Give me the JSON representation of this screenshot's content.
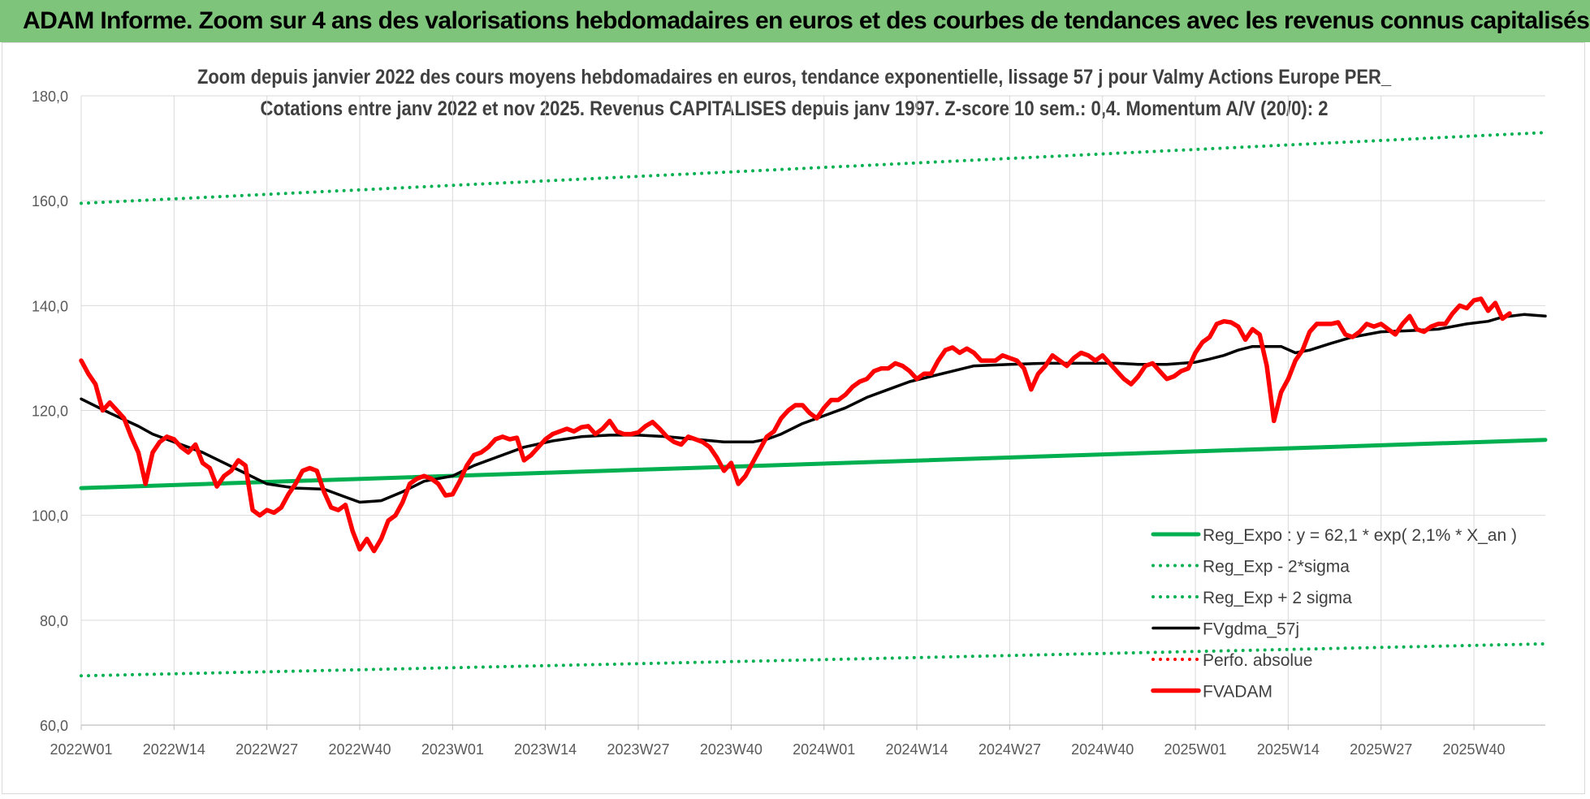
{
  "page": {
    "banner_title": "ADAM Informe. Zoom sur 4 ans des valorisations hebdomadaires en euros et des courbes de tendances avec les revenus connus capitalisés"
  },
  "chart_data": {
    "type": "line",
    "title": "Zoom depuis janvier 2022 des cours moyens hebdomadaires en euros, tendance exponentielle, lissage 57 j pour Valmy Actions Europe PER_",
    "subtitle": "Cotations entre janv 2022 et nov 2025. Revenus CAPITALISES depuis janv 1997. Z-score 10 sem.: 0,4. Momentum A/V (20/0): 2",
    "xlabel": "",
    "ylabel": "",
    "ylim": [
      60,
      180
    ],
    "yticks": [
      "60,0",
      "80,0",
      "100,0",
      "120,0",
      "140,0",
      "160,0",
      "180,0"
    ],
    "x_tick_labels": [
      "2022W01",
      "2022W14",
      "2022W27",
      "2022W40",
      "2023W01",
      "2023W14",
      "2023W27",
      "2023W40",
      "2024W01",
      "2024W14",
      "2024W27",
      "2024W40",
      "2025W01",
      "2025W14",
      "2025W27",
      "2025W40"
    ],
    "x_ticks": [
      0,
      13,
      26,
      39,
      52,
      65,
      78,
      91,
      104,
      117,
      130,
      143,
      156,
      169,
      182,
      195
    ],
    "x_range": [
      0,
      205
    ],
    "grid": true,
    "legend_position": "bottom-right",
    "series": [
      {
        "name": "Reg_Expo : y = 62,1 * exp( 2,1% *  X_an )",
        "style": "solid-thick",
        "color": "#00b050",
        "points": [
          [
            0,
            105.2
          ],
          [
            205,
            114.4
          ]
        ]
      },
      {
        "name": "Reg_Exp - 2*sigma",
        "style": "dotted",
        "color": "#00b050",
        "points": [
          [
            0,
            69.4
          ],
          [
            205,
            75.5
          ]
        ]
      },
      {
        "name": "Reg_Exp + 2 sigma",
        "style": "dotted",
        "color": "#00b050",
        "points": [
          [
            0,
            159.5
          ],
          [
            205,
            173.0
          ]
        ]
      },
      {
        "name": "FVgdma_57j",
        "style": "solid",
        "color": "#000000",
        "points": [
          [
            0,
            122.2
          ],
          [
            4,
            119.5
          ],
          [
            8,
            117.0
          ],
          [
            10,
            115.5
          ],
          [
            13,
            114.0
          ],
          [
            17,
            112.0
          ],
          [
            20,
            110.0
          ],
          [
            23,
            108.0
          ],
          [
            26,
            106.0
          ],
          [
            30,
            105.2
          ],
          [
            34,
            105.0
          ],
          [
            37,
            103.5
          ],
          [
            39,
            102.5
          ],
          [
            42,
            102.8
          ],
          [
            45,
            104.5
          ],
          [
            48,
            106.5
          ],
          [
            52,
            107.5
          ],
          [
            55,
            109.5
          ],
          [
            58,
            111.0
          ],
          [
            62,
            113.0
          ],
          [
            66,
            114.2
          ],
          [
            70,
            115.0
          ],
          [
            74,
            115.3
          ],
          [
            78,
            115.3
          ],
          [
            82,
            115.0
          ],
          [
            86,
            114.5
          ],
          [
            90,
            114.0
          ],
          [
            94,
            114.0
          ],
          [
            96,
            114.5
          ],
          [
            98,
            115.5
          ],
          [
            101,
            117.5
          ],
          [
            104,
            119.0
          ],
          [
            107,
            120.5
          ],
          [
            110,
            122.5
          ],
          [
            113,
            124.0
          ],
          [
            116,
            125.5
          ],
          [
            119,
            126.5
          ],
          [
            122,
            127.5
          ],
          [
            125,
            128.5
          ],
          [
            130,
            128.8
          ],
          [
            135,
            129.0
          ],
          [
            140,
            129.0
          ],
          [
            145,
            129.0
          ],
          [
            148,
            128.8
          ],
          [
            152,
            128.8
          ],
          [
            156,
            129.2
          ],
          [
            158,
            129.8
          ],
          [
            160,
            130.5
          ],
          [
            162,
            131.5
          ],
          [
            164,
            132.2
          ],
          [
            168,
            132.2
          ],
          [
            170,
            131.0
          ],
          [
            172,
            131.5
          ],
          [
            175,
            132.8
          ],
          [
            178,
            134.0
          ],
          [
            182,
            135.0
          ],
          [
            186,
            135.2
          ],
          [
            190,
            135.5
          ],
          [
            194,
            136.5
          ],
          [
            197,
            137.0
          ],
          [
            199,
            137.8
          ],
          [
            202,
            138.3
          ],
          [
            205,
            138.0
          ]
        ]
      },
      {
        "name": "Perfo. absolue",
        "style": "dotted",
        "color": "#ff0000",
        "points": []
      },
      {
        "name": "FVADAM",
        "style": "solid-thick",
        "color": "#ff0000",
        "points": [
          [
            0,
            129.5
          ],
          [
            1,
            127.0
          ],
          [
            2,
            125.0
          ],
          [
            3,
            120.0
          ],
          [
            4,
            121.5
          ],
          [
            5,
            120.0
          ],
          [
            6,
            118.5
          ],
          [
            7,
            115.0
          ],
          [
            8,
            112.0
          ],
          [
            9,
            106.0
          ],
          [
            10,
            112.0
          ],
          [
            11,
            114.0
          ],
          [
            12,
            115.0
          ],
          [
            13,
            114.5
          ],
          [
            14,
            113.0
          ],
          [
            15,
            112.0
          ],
          [
            16,
            113.5
          ],
          [
            17,
            110.0
          ],
          [
            18,
            109.0
          ],
          [
            19,
            105.5
          ],
          [
            20,
            107.5
          ],
          [
            21,
            108.5
          ],
          [
            22,
            110.5
          ],
          [
            23,
            109.5
          ],
          [
            24,
            101.0
          ],
          [
            25,
            100.0
          ],
          [
            26,
            101.0
          ],
          [
            27,
            100.5
          ],
          [
            28,
            101.5
          ],
          [
            29,
            104.0
          ],
          [
            30,
            106.0
          ],
          [
            31,
            108.5
          ],
          [
            32,
            109.0
          ],
          [
            33,
            108.5
          ],
          [
            34,
            104.5
          ],
          [
            35,
            101.5
          ],
          [
            36,
            101.0
          ],
          [
            37,
            102.0
          ],
          [
            38,
            97.0
          ],
          [
            39,
            93.5
          ],
          [
            40,
            95.5
          ],
          [
            41,
            93.2
          ],
          [
            42,
            95.5
          ],
          [
            43,
            99.0
          ],
          [
            44,
            100.0
          ],
          [
            45,
            102.5
          ],
          [
            46,
            106.0
          ],
          [
            47,
            107.0
          ],
          [
            48,
            107.5
          ],
          [
            49,
            107.0
          ],
          [
            50,
            106.0
          ],
          [
            51,
            103.8
          ],
          [
            52,
            104.0
          ],
          [
            53,
            106.5
          ],
          [
            54,
            109.5
          ],
          [
            55,
            111.5
          ],
          [
            56,
            112.0
          ],
          [
            57,
            113.0
          ],
          [
            58,
            114.5
          ],
          [
            59,
            115.0
          ],
          [
            60,
            114.5
          ],
          [
            61,
            114.8
          ],
          [
            62,
            110.5
          ],
          [
            63,
            111.5
          ],
          [
            64,
            113.0
          ],
          [
            65,
            114.5
          ],
          [
            66,
            115.5
          ],
          [
            67,
            116.0
          ],
          [
            68,
            116.5
          ],
          [
            69,
            116.0
          ],
          [
            70,
            116.8
          ],
          [
            71,
            117.0
          ],
          [
            72,
            115.5
          ],
          [
            73,
            116.5
          ],
          [
            74,
            118.0
          ],
          [
            75,
            116.0
          ],
          [
            76,
            115.5
          ],
          [
            77,
            115.5
          ],
          [
            78,
            115.8
          ],
          [
            79,
            117.0
          ],
          [
            80,
            117.8
          ],
          [
            81,
            116.5
          ],
          [
            82,
            115.0
          ],
          [
            83,
            114.0
          ],
          [
            84,
            113.5
          ],
          [
            85,
            115.0
          ],
          [
            86,
            114.5
          ],
          [
            87,
            114.0
          ],
          [
            88,
            113.0
          ],
          [
            89,
            111.0
          ],
          [
            90,
            108.5
          ],
          [
            91,
            110.0
          ],
          [
            92,
            106.0
          ],
          [
            93,
            107.5
          ],
          [
            94,
            110.0
          ],
          [
            95,
            112.5
          ],
          [
            96,
            115.0
          ],
          [
            97,
            116.0
          ],
          [
            98,
            118.5
          ],
          [
            99,
            120.0
          ],
          [
            100,
            121.0
          ],
          [
            101,
            121.0
          ],
          [
            102,
            119.5
          ],
          [
            103,
            118.5
          ],
          [
            104,
            120.5
          ],
          [
            105,
            122.0
          ],
          [
            106,
            122.0
          ],
          [
            107,
            123.0
          ],
          [
            108,
            124.5
          ],
          [
            109,
            125.5
          ],
          [
            110,
            126.0
          ],
          [
            111,
            127.5
          ],
          [
            112,
            128.0
          ],
          [
            113,
            128.0
          ],
          [
            114,
            129.0
          ],
          [
            115,
            128.5
          ],
          [
            116,
            127.5
          ],
          [
            117,
            126.0
          ],
          [
            118,
            127.0
          ],
          [
            119,
            127.0
          ],
          [
            120,
            129.5
          ],
          [
            121,
            131.5
          ],
          [
            122,
            132.0
          ],
          [
            123,
            131.0
          ],
          [
            124,
            131.8
          ],
          [
            125,
            131.0
          ],
          [
            126,
            129.5
          ],
          [
            127,
            129.5
          ],
          [
            128,
            129.5
          ],
          [
            129,
            130.5
          ],
          [
            130,
            130.0
          ],
          [
            131,
            129.5
          ],
          [
            132,
            128.0
          ],
          [
            133,
            124.0
          ],
          [
            134,
            127.0
          ],
          [
            135,
            128.5
          ],
          [
            136,
            130.5
          ],
          [
            137,
            129.5
          ],
          [
            138,
            128.5
          ],
          [
            139,
            130.0
          ],
          [
            140,
            131.0
          ],
          [
            141,
            130.5
          ],
          [
            142,
            129.5
          ],
          [
            143,
            130.5
          ],
          [
            144,
            129.0
          ],
          [
            145,
            127.5
          ],
          [
            146,
            126.0
          ],
          [
            147,
            125.0
          ],
          [
            148,
            126.5
          ],
          [
            149,
            128.5
          ],
          [
            150,
            129.0
          ],
          [
            151,
            127.5
          ],
          [
            152,
            126.0
          ],
          [
            153,
            126.5
          ],
          [
            154,
            127.5
          ],
          [
            155,
            128.0
          ],
          [
            156,
            131.0
          ],
          [
            157,
            133.0
          ],
          [
            158,
            134.0
          ],
          [
            159,
            136.5
          ],
          [
            160,
            137.0
          ],
          [
            161,
            136.8
          ],
          [
            162,
            136.0
          ],
          [
            163,
            133.5
          ],
          [
            164,
            135.5
          ],
          [
            165,
            134.5
          ],
          [
            166,
            128.5
          ],
          [
            167,
            118.0
          ],
          [
            168,
            123.5
          ],
          [
            169,
            126.0
          ],
          [
            170,
            129.5
          ],
          [
            171,
            131.5
          ],
          [
            172,
            135.0
          ],
          [
            173,
            136.5
          ],
          [
            174,
            136.5
          ],
          [
            175,
            136.5
          ],
          [
            176,
            136.8
          ],
          [
            177,
            134.5
          ],
          [
            178,
            134.0
          ],
          [
            179,
            135.0
          ],
          [
            180,
            136.5
          ],
          [
            181,
            136.0
          ],
          [
            182,
            136.5
          ],
          [
            183,
            135.5
          ],
          [
            184,
            134.5
          ],
          [
            185,
            136.5
          ],
          [
            186,
            138.0
          ],
          [
            187,
            135.5
          ],
          [
            188,
            135.0
          ],
          [
            189,
            136.0
          ],
          [
            190,
            136.5
          ],
          [
            191,
            136.5
          ],
          [
            192,
            138.5
          ],
          [
            193,
            140.0
          ],
          [
            194,
            139.5
          ],
          [
            195,
            141.0
          ],
          [
            196,
            141.3
          ],
          [
            197,
            139.0
          ],
          [
            198,
            140.5
          ],
          [
            199,
            137.5
          ],
          [
            200,
            138.5
          ]
        ]
      }
    ]
  }
}
